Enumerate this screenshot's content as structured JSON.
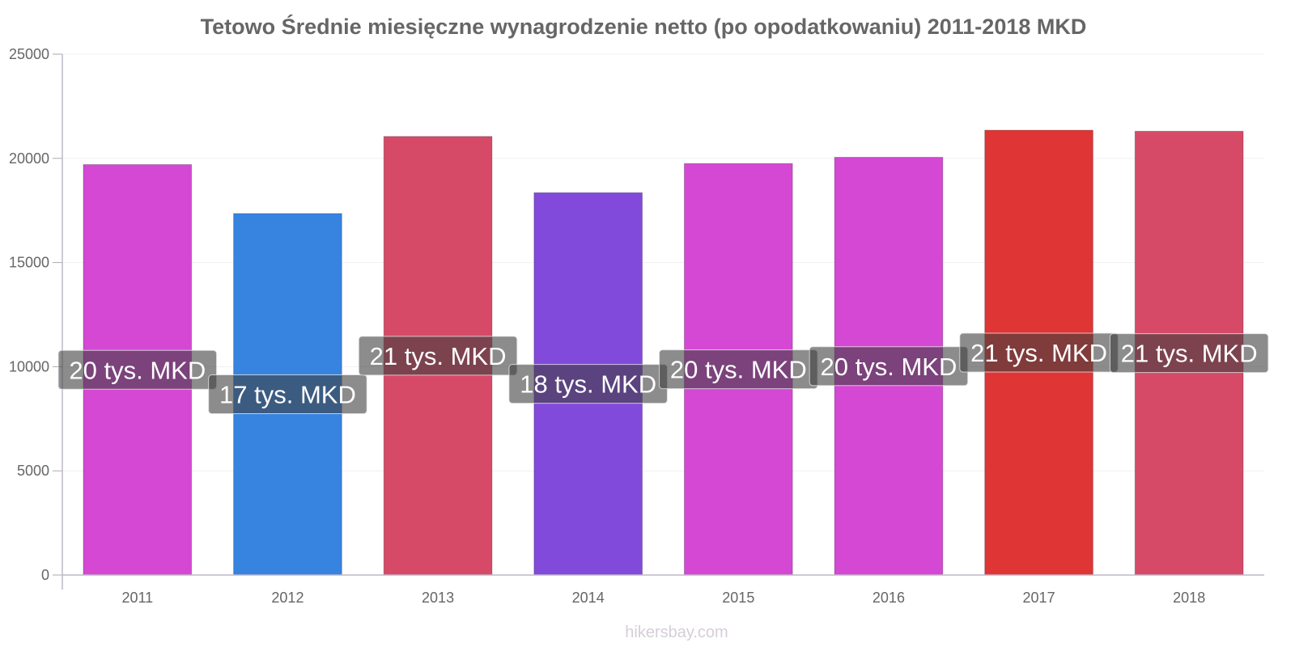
{
  "chart_data": {
    "type": "bar",
    "title": "Tetowo Średnie miesięczne wynagrodzenie netto (po opodatkowaniu) 2011-2018 MKD",
    "categories": [
      "2011",
      "2012",
      "2013",
      "2014",
      "2015",
      "2016",
      "2017",
      "2018"
    ],
    "values": [
      19700,
      17350,
      21050,
      18350,
      19750,
      20050,
      21350,
      21300
    ],
    "data_labels": [
      "20 tys. MKD",
      "17 tys. MKD",
      "21 tys. MKD",
      "18 tys. MKD",
      "20 tys. MKD",
      "20 tys. MKD",
      "21 tys. MKD",
      "21 tys. MKD"
    ],
    "bar_colors": [
      "#d448d4",
      "#3784e0",
      "#d64a68",
      "#824adb",
      "#d448d4",
      "#d448d4",
      "#e03535",
      "#d64a68"
    ],
    "ylim": [
      0,
      25000
    ],
    "yticks": [
      0,
      5000,
      10000,
      15000,
      20000,
      25000
    ],
    "xlabel": "",
    "ylabel": "",
    "grid": true,
    "legend": "none"
  },
  "footer": "hikersbay.com"
}
